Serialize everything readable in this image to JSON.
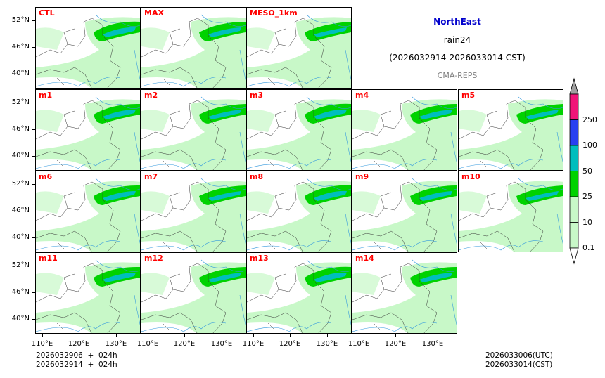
{
  "title": {
    "region": "NorthEast",
    "variable": "rain24",
    "period": "(2026032914-2026033014 CST)",
    "source": "CMA-REPS"
  },
  "panels": [
    "CTL",
    "MAX",
    "MESO_1km",
    "m1",
    "m2",
    "m3",
    "m4",
    "m5",
    "m6",
    "m7",
    "m8",
    "m9",
    "m10",
    "m11",
    "m12",
    "m13",
    "m14"
  ],
  "y_ticks": [
    "52°N",
    "46°N",
    "40°N"
  ],
  "x_ticks": [
    "110°E",
    "120°E",
    "130°E"
  ],
  "colorbar": {
    "levels": [
      "0.1",
      "10",
      "25",
      "50",
      "100",
      "250"
    ],
    "colors": [
      "#c8f8c8",
      "#00d200",
      "#00bebe",
      "#2840f0",
      "#f01478"
    ],
    "over_color": "#a0a0a0",
    "under_color": "#ffffff"
  },
  "footer": {
    "init_utc": "2026032906  +  024h",
    "init_cst": "2026032914  +  024h",
    "valid_utc": "2026033006(UTC)",
    "valid_cst": "2026033014(CST)"
  }
}
